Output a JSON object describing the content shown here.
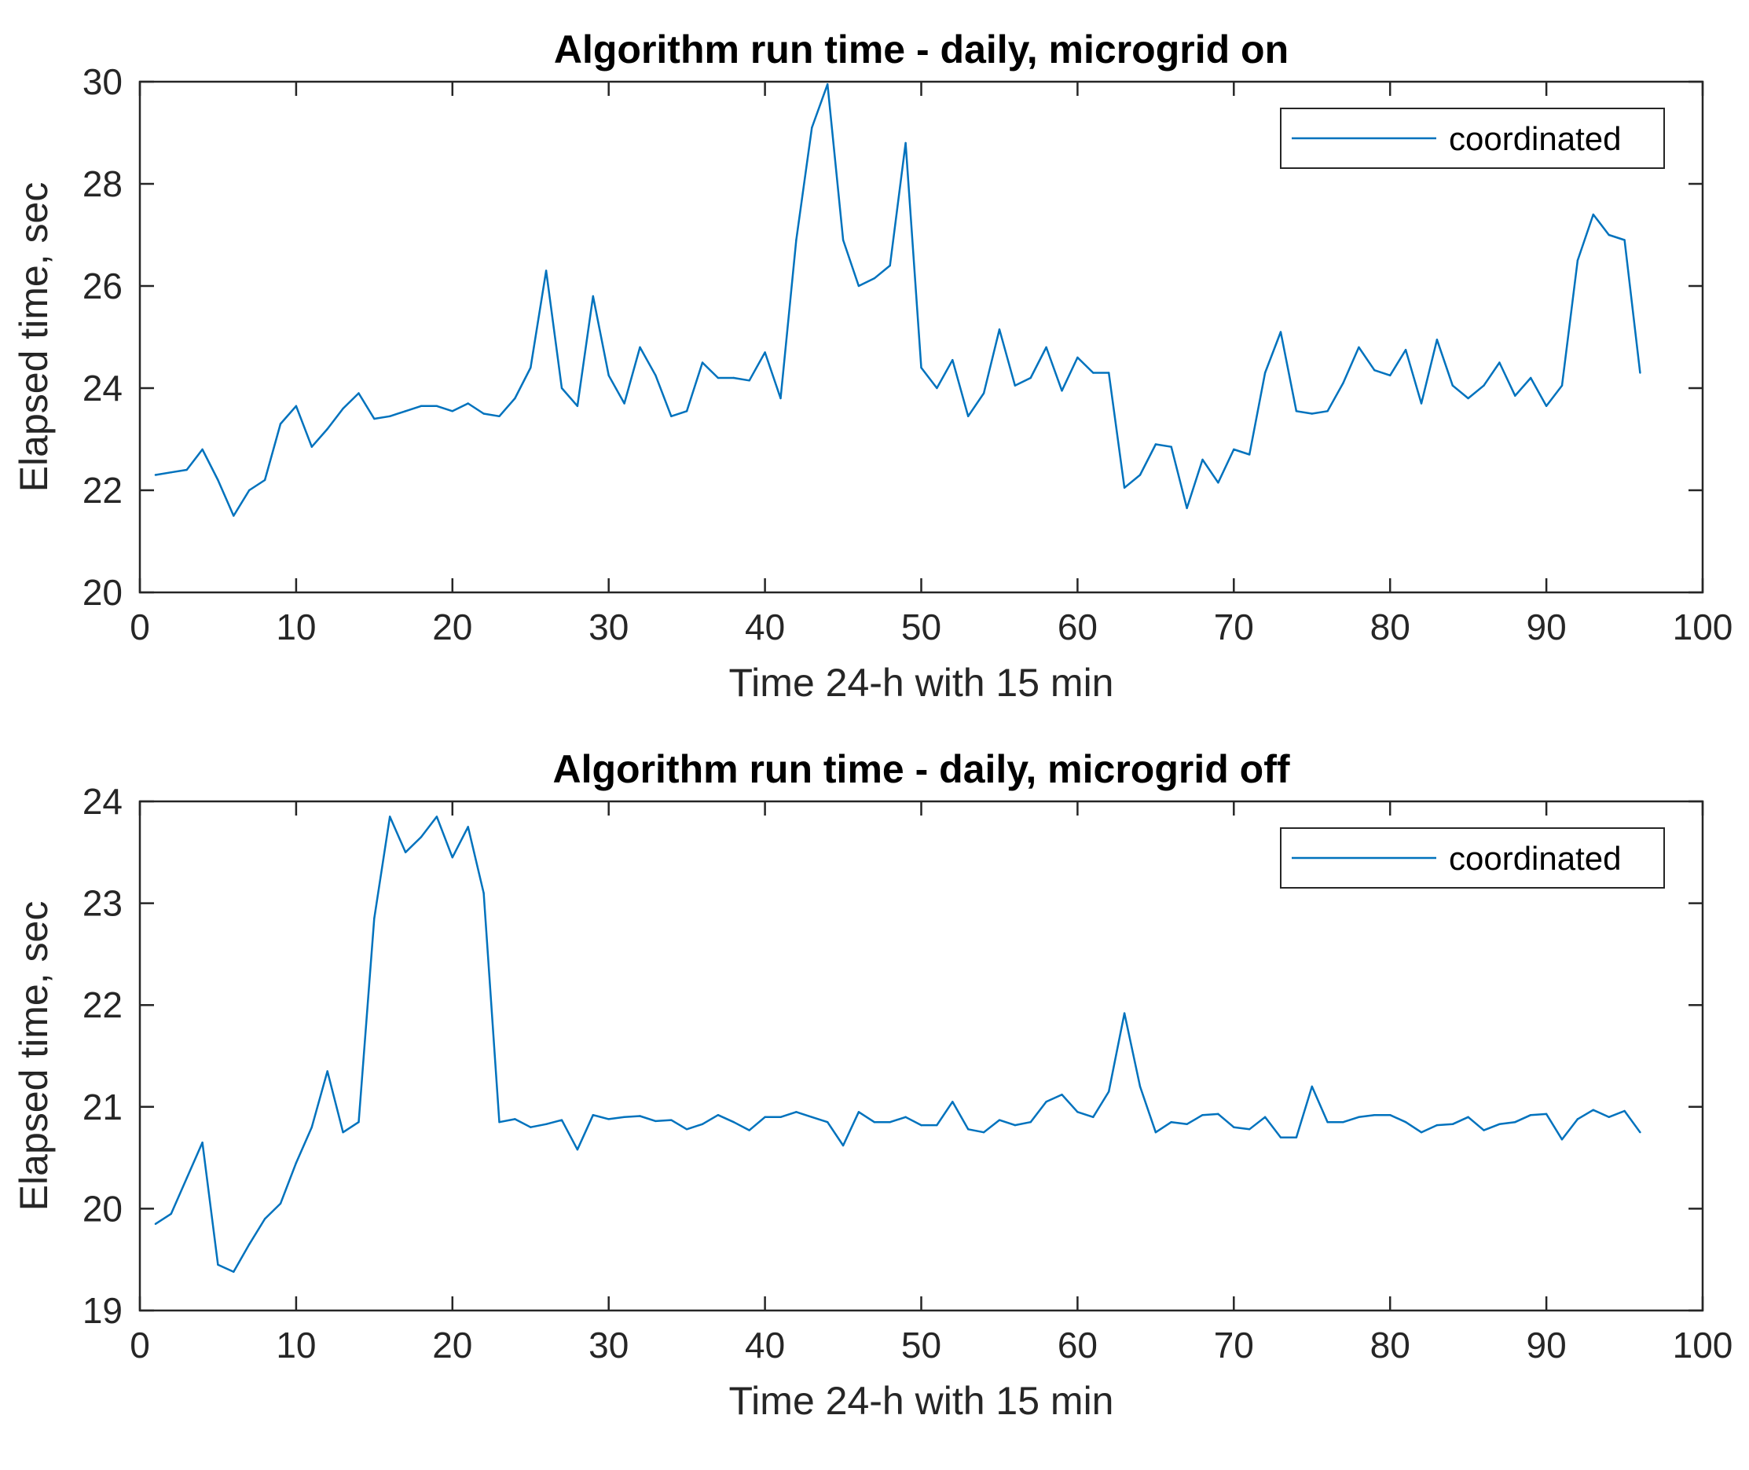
{
  "chart_data": [
    {
      "type": "line",
      "title": "Algorithm run time - daily, microgrid on",
      "xlabel": "Time 24-h with 15 min",
      "ylabel": "Elapsed time, sec",
      "xlim": [
        0,
        100
      ],
      "ylim": [
        20,
        30
      ],
      "xticks": [
        "0",
        "10",
        "20",
        "30",
        "40",
        "50",
        "60",
        "70",
        "80",
        "90",
        "100"
      ],
      "yticks": [
        "20",
        "22",
        "24",
        "26",
        "28",
        "30"
      ],
      "xtick_values": [
        0,
        10,
        20,
        30,
        40,
        50,
        60,
        70,
        80,
        90,
        100
      ],
      "ytick_values": [
        20,
        22,
        24,
        26,
        28,
        30
      ],
      "grid": false,
      "legend_position": "top-right",
      "color": "#0072BD",
      "series": [
        {
          "name": "coordinated",
          "x": [
            1,
            2,
            3,
            4,
            5,
            6,
            7,
            8,
            9,
            10,
            11,
            12,
            13,
            14,
            15,
            16,
            17,
            18,
            19,
            20,
            21,
            22,
            23,
            24,
            25,
            26,
            27,
            28,
            29,
            30,
            31,
            32,
            33,
            34,
            35,
            36,
            37,
            38,
            39,
            40,
            41,
            42,
            43,
            44,
            45,
            46,
            47,
            48,
            49,
            50,
            51,
            52,
            53,
            54,
            55,
            56,
            57,
            58,
            59,
            60,
            61,
            62,
            63,
            64,
            65,
            66,
            67,
            68,
            69,
            70,
            71,
            72,
            73,
            74,
            75,
            76,
            77,
            78,
            79,
            80,
            81,
            82,
            83,
            84,
            85,
            86,
            87,
            88,
            89,
            90,
            91,
            92,
            93,
            94,
            95,
            96
          ],
          "values": [
            22.3,
            22.35,
            22.4,
            22.8,
            22.2,
            21.5,
            22.0,
            22.2,
            23.3,
            23.65,
            22.85,
            23.2,
            23.6,
            23.9,
            23.4,
            23.45,
            23.55,
            23.65,
            23.65,
            23.55,
            23.7,
            23.5,
            23.45,
            23.8,
            24.4,
            26.3,
            24.0,
            23.65,
            25.8,
            24.25,
            23.7,
            24.8,
            24.25,
            23.45,
            23.55,
            24.5,
            24.2,
            24.2,
            24.15,
            24.7,
            23.8,
            26.9,
            29.1,
            29.95,
            26.9,
            26.0,
            26.15,
            26.4,
            28.8,
            24.4,
            24.0,
            24.55,
            23.45,
            23.9,
            25.15,
            24.05,
            24.2,
            24.8,
            23.95,
            24.6,
            24.3,
            24.3,
            22.05,
            22.3,
            22.9,
            22.85,
            21.65,
            22.6,
            22.15,
            22.8,
            22.7,
            24.3,
            25.1,
            23.55,
            23.5,
            23.55,
            24.1,
            24.8,
            24.35,
            24.25,
            24.75,
            23.7,
            24.95,
            24.05,
            23.8,
            24.05,
            24.5,
            23.85,
            24.2,
            23.65,
            24.05,
            26.5,
            27.4,
            27.0,
            26.9,
            24.3
          ]
        }
      ]
    },
    {
      "type": "line",
      "title": "Algorithm run time - daily, microgrid off",
      "xlabel": "Time 24-h with 15 min",
      "ylabel": "Elapsed time, sec",
      "xlim": [
        0,
        100
      ],
      "ylim": [
        19,
        24
      ],
      "xticks": [
        "0",
        "10",
        "20",
        "30",
        "40",
        "50",
        "60",
        "70",
        "80",
        "90",
        "100"
      ],
      "yticks": [
        "19",
        "20",
        "21",
        "22",
        "23",
        "24"
      ],
      "xtick_values": [
        0,
        10,
        20,
        30,
        40,
        50,
        60,
        70,
        80,
        90,
        100
      ],
      "ytick_values": [
        19,
        20,
        21,
        22,
        23,
        24
      ],
      "grid": false,
      "legend_position": "top-right",
      "color": "#0072BD",
      "series": [
        {
          "name": "coordinated",
          "x": [
            1,
            2,
            3,
            4,
            5,
            6,
            7,
            8,
            9,
            10,
            11,
            12,
            13,
            14,
            15,
            16,
            17,
            18,
            19,
            20,
            21,
            22,
            23,
            24,
            25,
            26,
            27,
            28,
            29,
            30,
            31,
            32,
            33,
            34,
            35,
            36,
            37,
            38,
            39,
            40,
            41,
            42,
            43,
            44,
            45,
            46,
            47,
            48,
            49,
            50,
            51,
            52,
            53,
            54,
            55,
            56,
            57,
            58,
            59,
            60,
            61,
            62,
            63,
            64,
            65,
            66,
            67,
            68,
            69,
            70,
            71,
            72,
            73,
            74,
            75,
            76,
            77,
            78,
            79,
            80,
            81,
            82,
            83,
            84,
            85,
            86,
            87,
            88,
            89,
            90,
            91,
            92,
            93,
            94,
            95,
            96
          ],
          "values": [
            19.85,
            19.95,
            20.3,
            20.65,
            19.45,
            19.38,
            19.65,
            19.9,
            20.05,
            20.45,
            20.8,
            21.35,
            20.75,
            20.85,
            22.85,
            23.85,
            23.5,
            23.65,
            23.85,
            23.45,
            23.75,
            23.1,
            20.85,
            20.88,
            20.8,
            20.83,
            20.87,
            20.58,
            20.92,
            20.88,
            20.9,
            20.91,
            20.86,
            20.87,
            20.78,
            20.83,
            20.92,
            20.85,
            20.77,
            20.9,
            20.9,
            20.95,
            20.9,
            20.85,
            20.62,
            20.95,
            20.85,
            20.85,
            20.9,
            20.82,
            20.82,
            21.05,
            20.78,
            20.75,
            20.87,
            20.82,
            20.85,
            21.05,
            21.12,
            20.95,
            20.9,
            21.15,
            21.92,
            21.2,
            20.75,
            20.85,
            20.83,
            20.92,
            20.93,
            20.8,
            20.78,
            20.9,
            20.7,
            20.7,
            21.2,
            20.85,
            20.85,
            20.9,
            20.92,
            20.92,
            20.85,
            20.75,
            20.82,
            20.83,
            20.9,
            20.77,
            20.83,
            20.85,
            20.92,
            20.93,
            20.68,
            20.88,
            20.97,
            20.9,
            20.96,
            20.75
          ]
        }
      ]
    }
  ]
}
